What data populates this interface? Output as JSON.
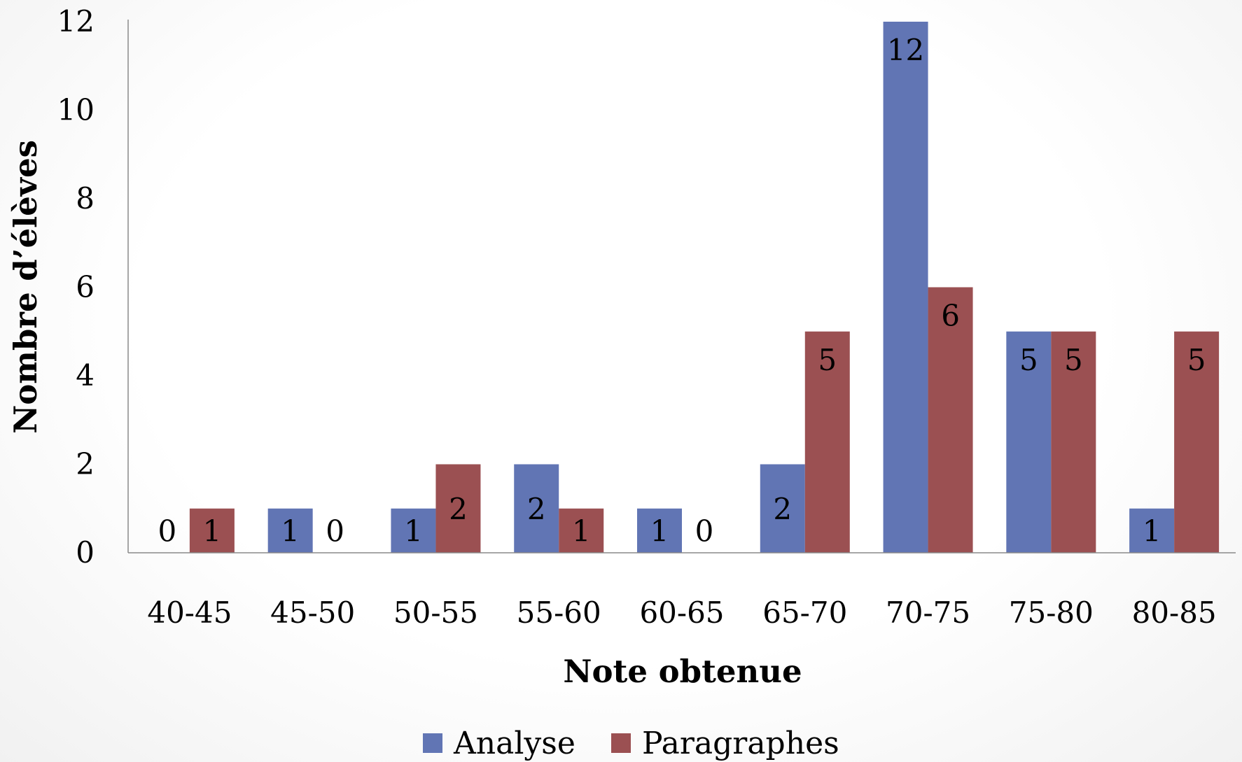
{
  "chart_data": {
    "type": "bar",
    "title": "",
    "xlabel": "Note obtenue",
    "ylabel": "Nombre d’élèves",
    "categories": [
      "40-45",
      "45-50",
      "50-55",
      "55-60",
      "60-65",
      "65-70",
      "70-75",
      "75-80",
      "80-85"
    ],
    "series": [
      {
        "name": "Analyse",
        "color": "#6175b4",
        "values": [
          0,
          1,
          1,
          2,
          1,
          2,
          12,
          5,
          1
        ]
      },
      {
        "name": "Paragraphes",
        "color": "#9b5052",
        "values": [
          1,
          0,
          2,
          1,
          0,
          5,
          6,
          5,
          5
        ]
      }
    ],
    "ylim": [
      0,
      12
    ],
    "yticks": [
      0,
      2,
      4,
      6,
      8,
      10,
      12
    ],
    "grid": false,
    "legend": "bottom",
    "data_labels": true
  }
}
